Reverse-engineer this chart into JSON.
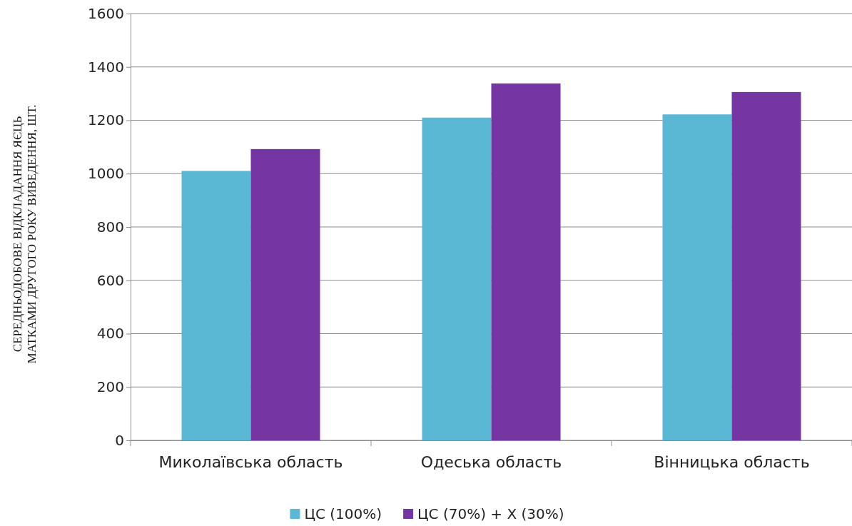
{
  "chart_data": {
    "type": "bar",
    "ylabel": "СЕРЕДНЬОДОБОВЕ ВІДКЛАДАННЯ ЯЄЦЬ МАТКАМИ ДРУГОГО РОКУ ВИВЕДЕННЯ, ШТ.",
    "categories": [
      "Миколаївська область",
      "Одеська область",
      "Вінницька область"
    ],
    "series": [
      {
        "name": "ЦС (100%)",
        "color": "#5bb8d5",
        "values": [
          1010,
          1210,
          1222
        ]
      },
      {
        "name": "ЦС (70%) + Х (30%)",
        "color": "#7535a3",
        "values": [
          1092,
          1338,
          1306
        ]
      }
    ],
    "ylim": [
      0,
      1600
    ],
    "yticks": [
      0,
      200,
      400,
      600,
      800,
      1000,
      1200,
      1400,
      1600
    ],
    "grid": "y",
    "legend": "bottom"
  }
}
